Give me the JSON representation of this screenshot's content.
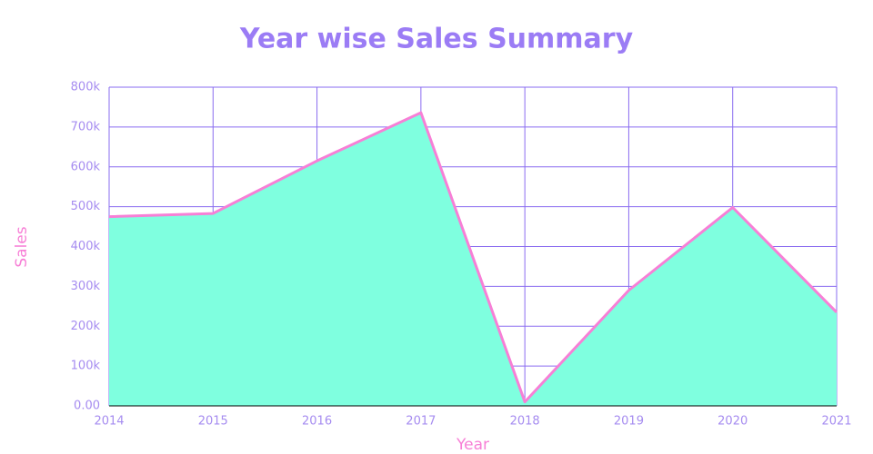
{
  "chart_data": {
    "type": "area",
    "title": "Year wise Sales Summary",
    "x_label": "Year",
    "y_label": "Sales",
    "x": [
      2014,
      2015,
      2016,
      2017,
      2018,
      2019,
      2020,
      2021
    ],
    "series": [
      {
        "name": "Sales",
        "color": "#7fffdf",
        "line_color": "#f77fd6",
        "values": [
          475000,
          483000,
          615000,
          736000,
          10000,
          290000,
          498000,
          235000
        ]
      }
    ],
    "xlim": [
      2014,
      2021
    ],
    "xticks": [
      2014,
      2015,
      2016,
      2017,
      2018,
      2019,
      2020,
      2021
    ],
    "ylim": [
      0,
      800000
    ],
    "yticks": [
      {
        "value": 0,
        "label": "0.00"
      },
      {
        "value": 100000,
        "label": "100k"
      },
      {
        "value": 200000,
        "label": "200k"
      },
      {
        "value": 300000,
        "label": "300k"
      },
      {
        "value": 400000,
        "label": "400k"
      },
      {
        "value": 500000,
        "label": "500k"
      },
      {
        "value": 600000,
        "label": "600k"
      },
      {
        "value": 700000,
        "label": "700k"
      },
      {
        "value": 800000,
        "label": "800k"
      }
    ],
    "grid": true
  }
}
